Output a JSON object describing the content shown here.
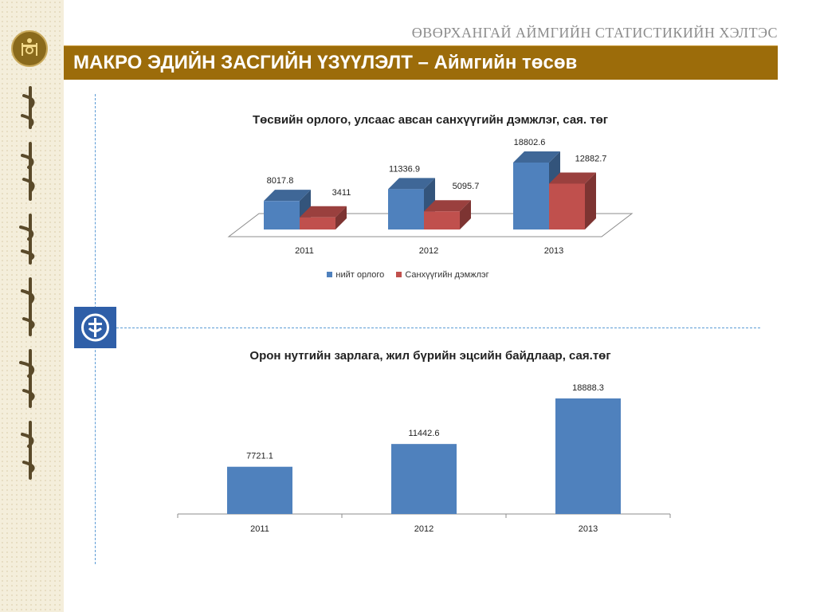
{
  "header": {
    "org_title": "ӨВӨРХАНГАЙ АЙМГИЙН СТАТИСТИКИЙН ХЭЛТЭС",
    "banner_title": "МАКРО ЭДИЙН ЗАСГИЙН ҮЗҮҮЛЭЛТ – Аймгийн төсөв"
  },
  "colors": {
    "banner": "#9c6c0a",
    "series_blue": "#4f81bd",
    "series_red": "#c0504d",
    "accent_line": "#5b9bd5"
  },
  "icons": {
    "logo": "soyombo-emblem-icon",
    "section": "balance-scale-icon"
  },
  "chart_data": [
    {
      "type": "bar",
      "title": "Төсвийн орлого, улсаас авсан санхүүгийн дэмжлэг, сая. төг",
      "categories": [
        "2011",
        "2012",
        "2013"
      ],
      "series": [
        {
          "name": "нийт орлого",
          "values": [
            8017.8,
            11336.9,
            18802.6
          ],
          "labels": [
            "8017.8",
            "11336.9",
            "18802.6"
          ]
        },
        {
          "name": "Санхүүгийн дэмжлэг",
          "values": [
            3411,
            5095.7,
            12882.7
          ],
          "labels": [
            "3411",
            "5095.7",
            "12882.7"
          ]
        }
      ],
      "style": "3d-clustered-column",
      "legend": "bottom"
    },
    {
      "type": "bar",
      "title": "Орон нутгийн зарлага, жил бүрийн эцсийн байдлаар, сая.төг",
      "categories": [
        "2011",
        "2012",
        "2013"
      ],
      "values": [
        7721.1,
        11442.6,
        18888.3
      ],
      "labels": [
        "7721.1",
        "11442.6",
        "18888.3"
      ]
    }
  ]
}
